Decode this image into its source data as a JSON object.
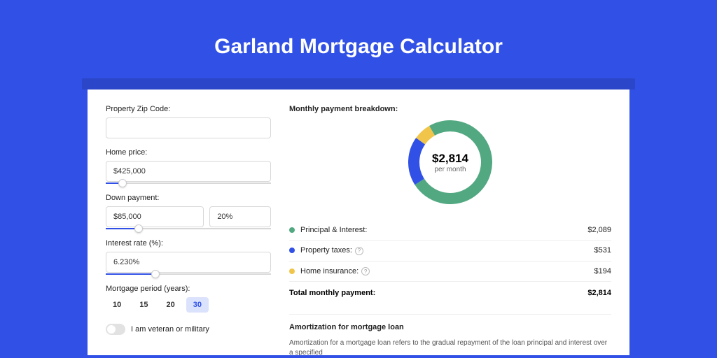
{
  "page": {
    "title": "Garland Mortgage Calculator",
    "title_fontsize": 30,
    "background_color": "#3151e6",
    "shadowbar_color": "#2b46c9",
    "card_background": "#ffffff"
  },
  "form": {
    "zip_label": "Property Zip Code:",
    "zip_value": "",
    "price_label": "Home price:",
    "price_value": "$425,000",
    "price_slider_pct": 10,
    "down_label": "Down payment:",
    "down_value": "$85,000",
    "down_pct": "20%",
    "down_slider_pct": 20,
    "rate_label": "Interest rate (%):",
    "rate_value": "6.230%",
    "rate_slider_pct": 30,
    "period_label": "Mortgage period (years):",
    "period_options": [
      {
        "label": "10",
        "active": false
      },
      {
        "label": "15",
        "active": false
      },
      {
        "label": "20",
        "active": false
      },
      {
        "label": "30",
        "active": true
      }
    ],
    "veteran_label": "I am veteran or military",
    "veteran_on": false,
    "input_border": "#d8d8d8",
    "slider_color": "#3151e6",
    "active_bg": "#dbe2fb"
  },
  "breakdown": {
    "title": "Monthly payment breakdown:",
    "donut": {
      "type": "pie",
      "size": 120,
      "thickness": 16,
      "center_value": "$2,814",
      "center_sub": "per month",
      "slices": [
        {
          "label": "Principal & Interest",
          "value": 2089,
          "color": "#52a880",
          "pct": 74.2
        },
        {
          "label": "Property taxes",
          "value": 531,
          "color": "#3151e6",
          "pct": 18.9
        },
        {
          "label": "Home insurance",
          "value": 194,
          "color": "#f0c54a",
          "pct": 6.9
        }
      ]
    },
    "legend": [
      {
        "label": "Principal & Interest:",
        "value": "$2,089",
        "color": "#52a880",
        "info": false
      },
      {
        "label": "Property taxes:",
        "value": "$531",
        "color": "#3151e6",
        "info": true
      },
      {
        "label": "Home insurance:",
        "value": "$194",
        "color": "#f0c54a",
        "info": true
      }
    ],
    "total_label": "Total monthly payment:",
    "total_value": "$2,814"
  },
  "amort": {
    "title": "Amortization for mortgage loan",
    "text": "Amortization for a mortgage loan refers to the gradual repayment of the loan principal and interest over a specified"
  }
}
